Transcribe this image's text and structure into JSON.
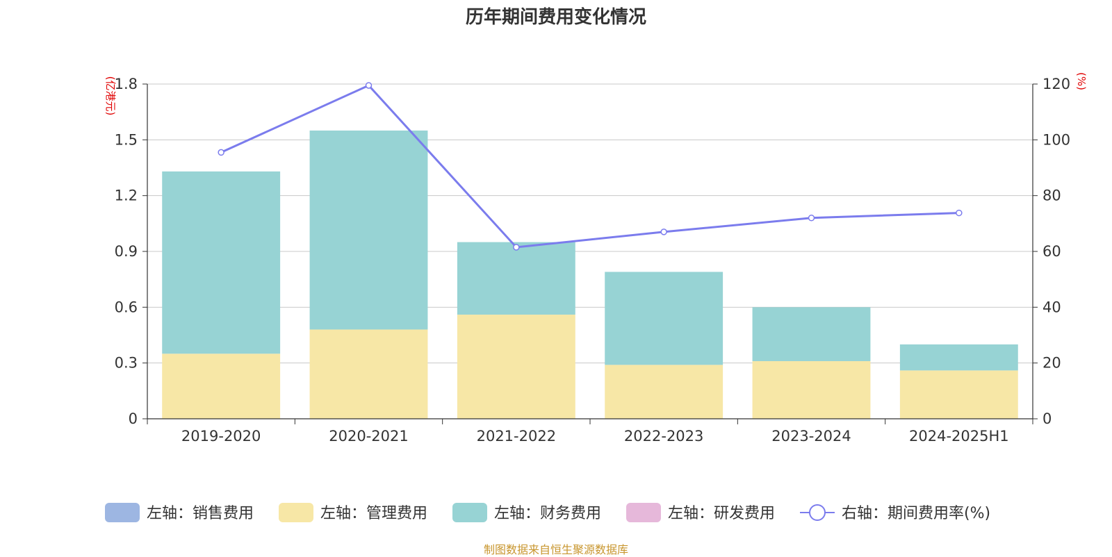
{
  "chart_data": {
    "type": "bar",
    "title": "历年期间费用变化情况",
    "categories": [
      "2019-2020",
      "2020-2021",
      "2021-2022",
      "2022-2023",
      "2023-2024",
      "2024-2025H1"
    ],
    "left_axis": {
      "unit": "(亿港元)",
      "ylim": [
        0,
        1.8
      ],
      "ticks": [
        0,
        0.3,
        0.6,
        0.9,
        1.2,
        1.5,
        1.8
      ]
    },
    "right_axis": {
      "unit": "(%)",
      "ylim": [
        0,
        120
      ],
      "ticks": [
        0,
        20,
        40,
        60,
        80,
        100,
        120
      ]
    },
    "stacked": true,
    "grid": true,
    "legend_position": "bottom",
    "series": [
      {
        "name": "左轴：销售费用",
        "kind": "bar",
        "axis": "left",
        "color": "#9db6e2",
        "values": [
          0,
          0,
          0,
          0,
          0,
          0
        ]
      },
      {
        "name": "左轴：管理费用",
        "kind": "bar",
        "axis": "left",
        "color": "#f7e7a6",
        "values": [
          0.35,
          0.48,
          0.56,
          0.29,
          0.31,
          0.26
        ]
      },
      {
        "name": "左轴：财务费用",
        "kind": "bar",
        "axis": "left",
        "color": "#97d3d4",
        "values": [
          0.98,
          1.07,
          0.39,
          0.5,
          0.29,
          0.14
        ]
      },
      {
        "name": "左轴：研发费用",
        "kind": "bar",
        "axis": "left",
        "color": "#e6b8da",
        "values": [
          0,
          0,
          0,
          0,
          0,
          0
        ]
      },
      {
        "name": "右轴：期间费用率(%)",
        "kind": "line",
        "axis": "right",
        "color": "#7b7ced",
        "values": [
          95.5,
          119.5,
          61.5,
          67,
          72,
          73.8
        ]
      }
    ],
    "source_note": "制图数据来自恒生聚源数据库"
  }
}
